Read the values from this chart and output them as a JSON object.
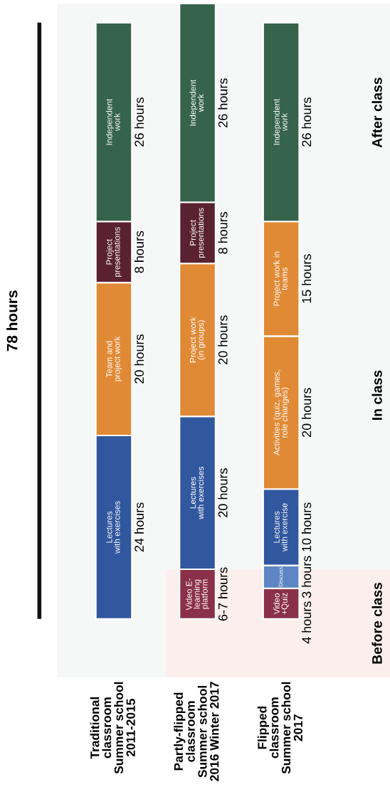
{
  "chart_data": {
    "type": "bar",
    "stacked": true,
    "title": "78 hours",
    "categories": [
      "Traditional\nclassroom\nSummer school\n2011-2015",
      "Partly-flipped\nclassroom\nSummer school\n2016 Winter 2017",
      "Flipped\nclassroom\nSummer school\n2017"
    ],
    "series": [
      {
        "name": "Video E-\nlearning\nplatform",
        "color": "#8a304b",
        "values": [
          null,
          6.5,
          null
        ],
        "value_labels": [
          null,
          "6-7 hours",
          null
        ]
      },
      {
        "name": "Video\n+Quiz",
        "color": "#8a304b",
        "values": [
          null,
          null,
          4
        ],
        "value_labels": [
          null,
          null,
          "4 hours"
        ]
      },
      {
        "name": "Discuss",
        "color": "#5d86c2",
        "values": [
          null,
          null,
          3
        ],
        "value_labels": [
          null,
          null,
          "3 hours"
        ]
      },
      {
        "name": "Lectures\nwith exercises",
        "color": "#31579e",
        "values": [
          24,
          20,
          null
        ],
        "value_labels": [
          "24 hours",
          "20 hours",
          null
        ]
      },
      {
        "name": "Lectures\nwith exercise",
        "color": "#31579e",
        "values": [
          null,
          null,
          10
        ],
        "value_labels": [
          null,
          null,
          "10 hours"
        ]
      },
      {
        "name": "Activities (quiz, games,\nrole changes)",
        "color": "#e08a35",
        "values": [
          null,
          null,
          20
        ],
        "value_labels": [
          null,
          null,
          "20 hours"
        ]
      },
      {
        "name": "Team and\nproject work",
        "color": "#e08a35",
        "values": [
          20,
          null,
          null
        ],
        "value_labels": [
          "20 hours",
          null,
          null
        ]
      },
      {
        "name": "Project work\n(in groups)",
        "color": "#e08a35",
        "values": [
          null,
          20,
          null
        ],
        "value_labels": [
          null,
          "20 hours",
          null
        ]
      },
      {
        "name": "Project\npresentations",
        "color": "#5a2230",
        "values": [
          8,
          8,
          null
        ],
        "value_labels": [
          "8 hours",
          "8 hours",
          null
        ]
      },
      {
        "name": "Project work in\nteams",
        "color": "#e08a35",
        "values": [
          null,
          null,
          15
        ],
        "value_labels": [
          null,
          null,
          "15 hours"
        ]
      },
      {
        "name": "Independent\nwork",
        "color": "#36634b",
        "values": [
          26,
          26,
          26
        ],
        "value_labels": [
          "26 hours",
          "26 hours",
          "26 hours"
        ]
      }
    ],
    "annotations": [
      "Before class",
      "In class",
      "After class"
    ],
    "tick_labels": "x"
  }
}
